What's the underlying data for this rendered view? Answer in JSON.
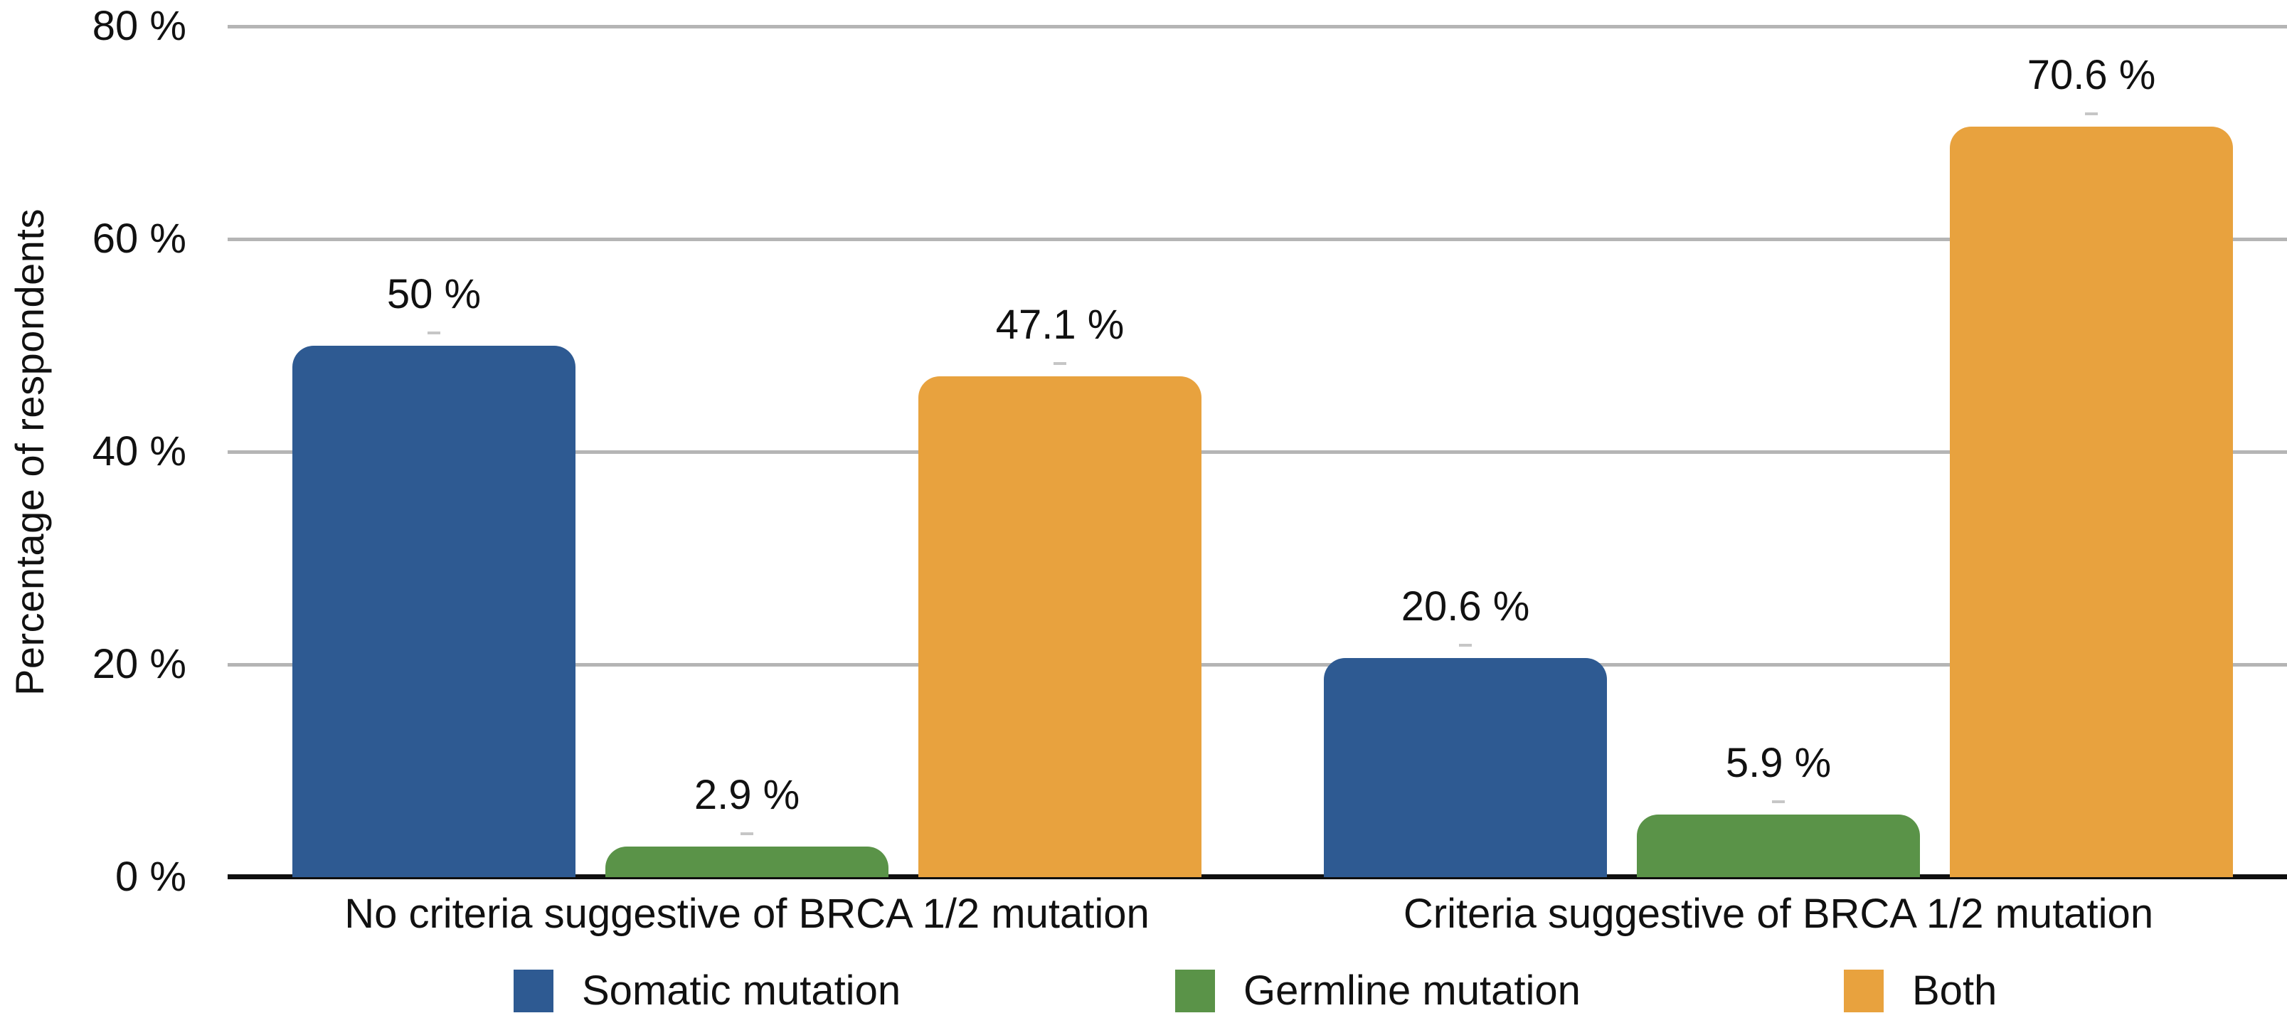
{
  "chart_data": {
    "type": "bar",
    "title": "",
    "ylabel": "Percentage of respondents",
    "xlabel": "",
    "ylim": [
      0,
      80
    ],
    "grid": true,
    "legend_position": "bottom",
    "categories": [
      "No criteria suggestive of BRCA 1/2 mutation",
      "Criteria suggestive of BRCA 1/2 mutation"
    ],
    "series": [
      {
        "name": "Somatic mutation",
        "color": "#2E5A92",
        "values": [
          50,
          20.6
        ],
        "value_labels": [
          "50 %",
          "20.6 %"
        ]
      },
      {
        "name": "Germline mutation",
        "color": "#5A9348",
        "values": [
          2.9,
          5.9
        ],
        "value_labels": [
          "2.9 %",
          "5.9 %"
        ]
      },
      {
        "name": "Both",
        "color": "#E8A23E",
        "values": [
          47.1,
          70.6
        ],
        "value_labels": [
          "47.1 %",
          "70.6 %"
        ]
      }
    ],
    "yticks": [
      {
        "value": 0,
        "label": "0 %"
      },
      {
        "value": 20,
        "label": "20 %"
      },
      {
        "value": 40,
        "label": "40 %"
      },
      {
        "value": 60,
        "label": "60 %"
      },
      {
        "value": 80,
        "label": "80 %"
      }
    ],
    "colors": {
      "gridline": "#b5b5b5",
      "axis_line": "#0f0f0f",
      "bar_cap": "#c6c6c6",
      "text": "#111111",
      "background": "#ffffff"
    }
  }
}
